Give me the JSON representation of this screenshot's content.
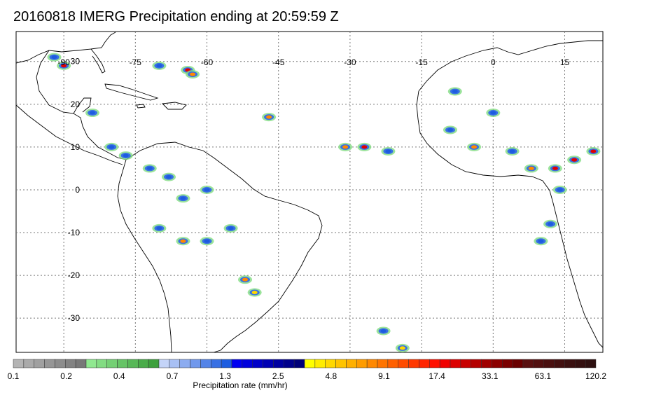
{
  "title": "20160818 IMERG Precipitation ending at 20:59:59 Z",
  "map": {
    "lon_range": [
      -100,
      23
    ],
    "lat_range": [
      -38,
      37
    ],
    "lon_ticks": [
      {
        "value": -90,
        "label": "-90"
      },
      {
        "value": -75,
        "label": "-75"
      },
      {
        "value": -60,
        "label": "-60"
      },
      {
        "value": -45,
        "label": "-45"
      },
      {
        "value": -30,
        "label": "-30"
      },
      {
        "value": -15,
        "label": "-15"
      },
      {
        "value": 0,
        "label": "0"
      },
      {
        "value": 15,
        "label": "15"
      }
    ],
    "lat_ticks": [
      {
        "value": 30,
        "label": "30"
      },
      {
        "value": 20,
        "label": "20"
      },
      {
        "value": 10,
        "label": "10"
      },
      {
        "value": 0,
        "label": "0"
      },
      {
        "value": -10,
        "label": "-10"
      },
      {
        "value": -20,
        "label": "-20"
      },
      {
        "value": -30,
        "label": "-30"
      }
    ],
    "gridlines": true,
    "land_outline_color": "#000000"
  },
  "colorbar": {
    "title": "Precipitation rate (mm/hr)",
    "labels": [
      "0.1",
      "0.2",
      "0.4",
      "0.7",
      "1.3",
      "2.5",
      "4.8",
      "9.1",
      "17.4",
      "33.1",
      "63.1",
      "120.2"
    ],
    "colors": [
      "#b4b4b4",
      "#aaaaaa",
      "#a0a0a0",
      "#969696",
      "#8c8c8c",
      "#828282",
      "#787878",
      "#90e890",
      "#82dc82",
      "#74d074",
      "#66c466",
      "#58b858",
      "#4aac4a",
      "#3ca03c",
      "#c4d4f8",
      "#a8c0f4",
      "#8cacf0",
      "#7098ec",
      "#5484e8",
      "#3870e4",
      "#1c5ce0",
      "#0000f0",
      "#0000dc",
      "#0000c8",
      "#0000b4",
      "#0000a0",
      "#00008c",
      "#000078",
      "#ffff00",
      "#ffec00",
      "#ffd800",
      "#ffc400",
      "#ffb000",
      "#ff9c00",
      "#ff8800",
      "#ff7400",
      "#ff6000",
      "#ff4c00",
      "#ff3800",
      "#ff2400",
      "#ff1000",
      "#f00000",
      "#dc0000",
      "#c80000",
      "#b40000",
      "#a00000",
      "#8c0000",
      "#7a0000",
      "#6a0000",
      "#5a1010",
      "#521010",
      "#4a1010",
      "#421010",
      "#3a1010",
      "#341010",
      "#2e1010"
    ]
  },
  "precip_cells": [
    {
      "lon": -90,
      "lat": 29,
      "lv": "red"
    },
    {
      "lon": -92,
      "lat": 31,
      "lv": "blue"
    },
    {
      "lon": -70,
      "lat": 29,
      "lv": "blue"
    },
    {
      "lon": -64,
      "lat": 28,
      "lv": "red"
    },
    {
      "lon": -63,
      "lat": 27,
      "lv": "orange"
    },
    {
      "lon": -84,
      "lat": 18,
      "lv": "blue"
    },
    {
      "lon": -80,
      "lat": 10,
      "lv": "blue"
    },
    {
      "lon": -77,
      "lat": 8,
      "lv": "blue"
    },
    {
      "lon": -72,
      "lat": 5,
      "lv": "blue"
    },
    {
      "lon": -68,
      "lat": 3,
      "lv": "blue"
    },
    {
      "lon": -65,
      "lat": -2,
      "lv": "blue"
    },
    {
      "lon": -60,
      "lat": 0,
      "lv": "blue"
    },
    {
      "lon": -70,
      "lat": -9,
      "lv": "blue"
    },
    {
      "lon": -65,
      "lat": -12,
      "lv": "orange"
    },
    {
      "lon": -60,
      "lat": -12,
      "lv": "blue"
    },
    {
      "lon": -55,
      "lat": -9,
      "lv": "blue"
    },
    {
      "lon": -47,
      "lat": 17,
      "lv": "orange"
    },
    {
      "lon": -27,
      "lat": 10,
      "lv": "red"
    },
    {
      "lon": -31,
      "lat": 10,
      "lv": "orange"
    },
    {
      "lon": -22,
      "lat": 9,
      "lv": "blue"
    },
    {
      "lon": -52,
      "lat": -21,
      "lv": "orange"
    },
    {
      "lon": -50,
      "lat": -24,
      "lv": "yellow"
    },
    {
      "lon": -23,
      "lat": -33,
      "lv": "blue"
    },
    {
      "lon": -19,
      "lat": -37,
      "lv": "yellow"
    },
    {
      "lon": 0,
      "lat": 18,
      "lv": "blue"
    },
    {
      "lon": -9,
      "lat": 14,
      "lv": "blue"
    },
    {
      "lon": -4,
      "lat": 10,
      "lv": "orange"
    },
    {
      "lon": 4,
      "lat": 9,
      "lv": "blue"
    },
    {
      "lon": 8,
      "lat": 5,
      "lv": "orange"
    },
    {
      "lon": 13,
      "lat": 5,
      "lv": "red"
    },
    {
      "lon": 17,
      "lat": 7,
      "lv": "red"
    },
    {
      "lon": 21,
      "lat": 9,
      "lv": "red"
    },
    {
      "lon": 14,
      "lat": 0,
      "lv": "blue"
    },
    {
      "lon": 12,
      "lat": -8,
      "lv": "blue"
    },
    {
      "lon": 10,
      "lat": -12,
      "lv": "blue"
    },
    {
      "lon": -8,
      "lat": 23,
      "lv": "blue"
    }
  ]
}
